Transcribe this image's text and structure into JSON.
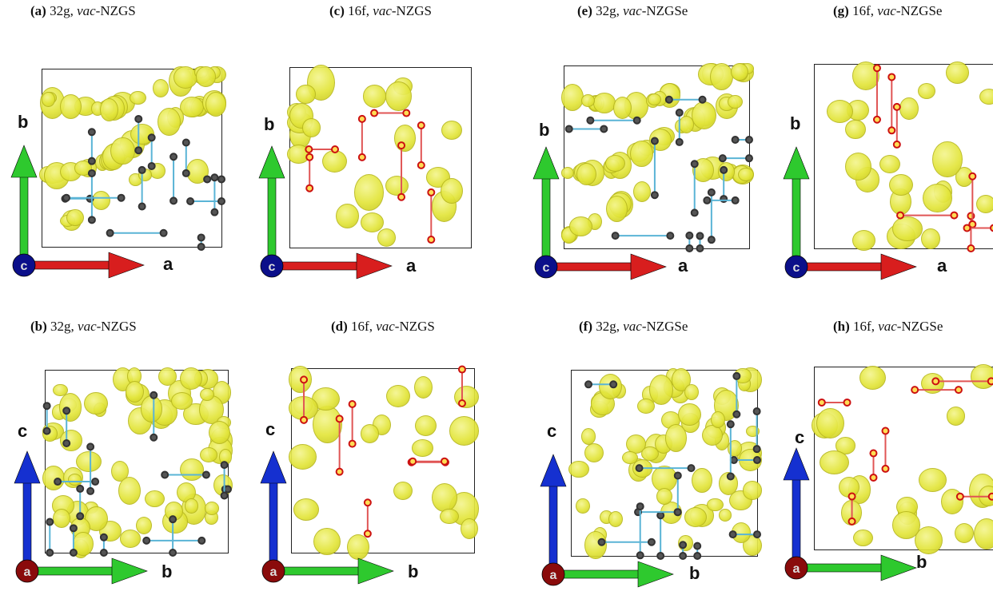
{
  "panels": [
    {
      "id": "a",
      "tag": "(a)",
      "site": "32g,",
      "prefix": "vac",
      "material": "-NZGS",
      "vert": "b",
      "horiz": "a",
      "origin": "c",
      "mode": "g",
      "cross": "ab"
    },
    {
      "id": "c",
      "tag": "(c)",
      "site": "16f,",
      "prefix": "vac",
      "material": "-NZGS",
      "vert": "b",
      "horiz": "a",
      "origin": "c",
      "mode": "f",
      "cross": "ab"
    },
    {
      "id": "e",
      "tag": "(e)",
      "site": "32g,",
      "prefix": "vac",
      "material": "-NZGSe",
      "vert": "b",
      "horiz": "a",
      "origin": "c",
      "mode": "g",
      "cross": "ab"
    },
    {
      "id": "g",
      "tag": "(g)",
      "site": "16f,",
      "prefix": "vac",
      "material": "-NZGSe",
      "vert": "b",
      "horiz": "a",
      "origin": "c",
      "mode": "f",
      "cross": "ab"
    },
    {
      "id": "b",
      "tag": "(b)",
      "site": "32g,",
      "prefix": "vac",
      "material": "-NZGS",
      "vert": "c",
      "horiz": "b",
      "origin": "a",
      "mode": "g",
      "cross": "bc"
    },
    {
      "id": "d",
      "tag": "(d)",
      "site": "16f,",
      "prefix": "vac",
      "material": "-NZGS",
      "vert": "c",
      "horiz": "b",
      "origin": "a",
      "mode": "f",
      "cross": "bc"
    },
    {
      "id": "f",
      "tag": "(f)",
      "site": "32g,",
      "prefix": "vac",
      "material": "-NZGSe",
      "vert": "c",
      "horiz": "b",
      "origin": "a",
      "mode": "g",
      "cross": "bc"
    },
    {
      "id": "h",
      "tag": "(h)",
      "site": "16f,",
      "prefix": "vac",
      "material": "-NZGSe",
      "vert": "c",
      "horiz": "b",
      "origin": "a",
      "mode": "f",
      "cross": "bc"
    }
  ],
  "colors": {
    "isosurface": "#e3e63c",
    "axis_a_red": "#d81e1e",
    "axis_b_green": "#2ec92e",
    "axis_c_blue": "#1530d0",
    "origin_c": "#0b0f8a",
    "origin_a": "#8a0b0b",
    "path_32g_bond": "#5ab4d6",
    "path_16f_bond": "#e05555",
    "site_dark": "#333333",
    "site_red": "#cc1111"
  }
}
